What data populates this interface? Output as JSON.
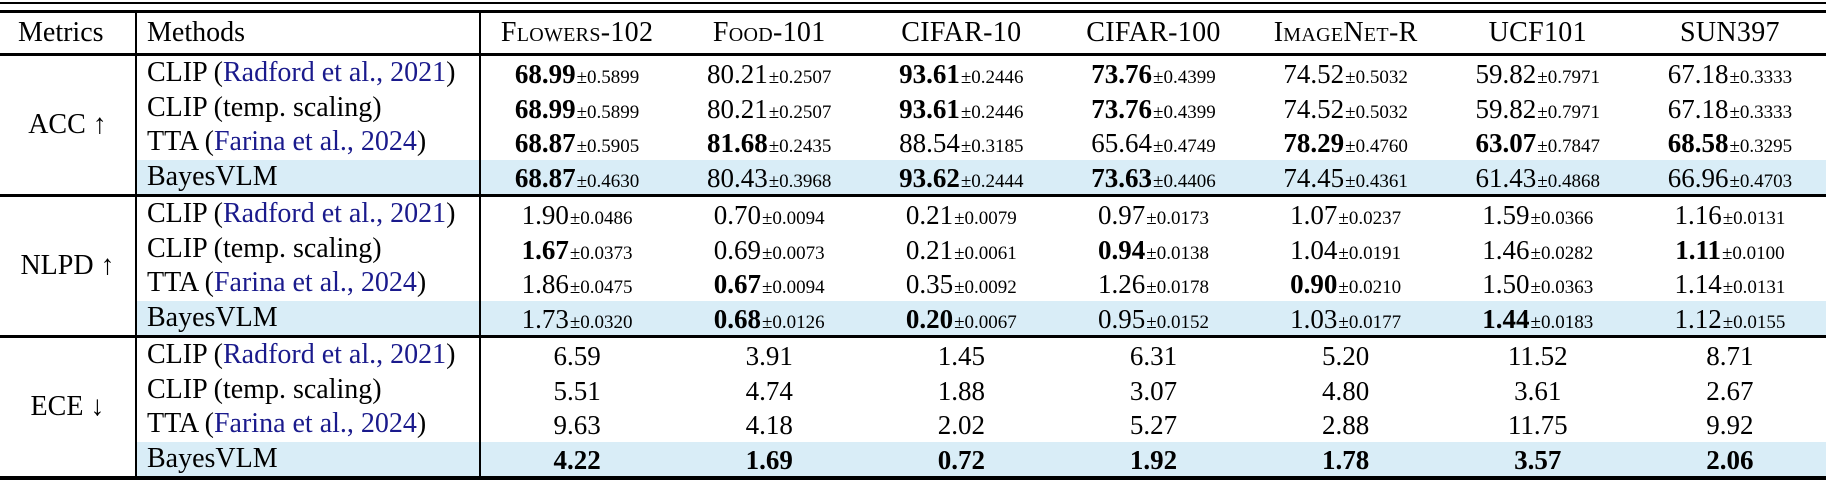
{
  "colors": {
    "highlight": "#d9edf7",
    "citation": "#1a1a8c",
    "rule": "#000000"
  },
  "header": {
    "metrics": "Metrics",
    "methods": "Methods",
    "datasets": [
      "Flowers-102",
      "Food-101",
      "CIFAR-10",
      "CIFAR-100",
      "ImageNet-R",
      "UCF101",
      "SUN397"
    ]
  },
  "sections": [
    {
      "label": "ACC ↑",
      "rows": [
        {
          "method_prefix": "CLIP (",
          "method_cite": "Radford et al., 2021",
          "method_suffix": ")",
          "highlight": false,
          "cells": [
            {
              "v": "68.99",
              "std": "±0.5899",
              "b": true
            },
            {
              "v": "80.21",
              "std": "±0.2507",
              "b": false
            },
            {
              "v": "93.61",
              "std": "±0.2446",
              "b": true
            },
            {
              "v": "73.76",
              "std": "±0.4399",
              "b": true
            },
            {
              "v": "74.52",
              "std": "±0.5032",
              "b": false
            },
            {
              "v": "59.82",
              "std": "±0.7971",
              "b": false
            },
            {
              "v": "67.18",
              "std": "±0.3333",
              "b": false
            }
          ]
        },
        {
          "method_prefix": "CLIP (temp. scaling)",
          "method_cite": "",
          "method_suffix": "",
          "highlight": false,
          "cells": [
            {
              "v": "68.99",
              "std": "±0.5899",
              "b": true
            },
            {
              "v": "80.21",
              "std": "±0.2507",
              "b": false
            },
            {
              "v": "93.61",
              "std": "±0.2446",
              "b": true
            },
            {
              "v": "73.76",
              "std": "±0.4399",
              "b": true
            },
            {
              "v": "74.52",
              "std": "±0.5032",
              "b": false
            },
            {
              "v": "59.82",
              "std": "±0.7971",
              "b": false
            },
            {
              "v": "67.18",
              "std": "±0.3333",
              "b": false
            }
          ]
        },
        {
          "method_prefix": "TTA (",
          "method_cite": "Farina et al., 2024",
          "method_suffix": ")",
          "highlight": false,
          "cells": [
            {
              "v": "68.87",
              "std": "±0.5905",
              "b": true
            },
            {
              "v": "81.68",
              "std": "±0.2435",
              "b": true
            },
            {
              "v": "88.54",
              "std": "±0.3185",
              "b": false
            },
            {
              "v": "65.64",
              "std": "±0.4749",
              "b": false
            },
            {
              "v": "78.29",
              "std": "±0.4760",
              "b": true
            },
            {
              "v": "63.07",
              "std": "±0.7847",
              "b": true
            },
            {
              "v": "68.58",
              "std": "±0.3295",
              "b": true
            }
          ]
        },
        {
          "method_prefix": "BayesVLM",
          "method_cite": "",
          "method_suffix": "",
          "highlight": true,
          "cells": [
            {
              "v": "68.87",
              "std": "±0.4630",
              "b": true
            },
            {
              "v": "80.43",
              "std": "±0.3968",
              "b": false
            },
            {
              "v": "93.62",
              "std": "±0.2444",
              "b": true
            },
            {
              "v": "73.63",
              "std": "±0.4406",
              "b": true
            },
            {
              "v": "74.45",
              "std": "±0.4361",
              "b": false
            },
            {
              "v": "61.43",
              "std": "±0.4868",
              "b": false
            },
            {
              "v": "66.96",
              "std": "±0.4703",
              "b": false
            }
          ]
        }
      ]
    },
    {
      "label": "NLPD ↑",
      "rows": [
        {
          "method_prefix": "CLIP (",
          "method_cite": "Radford et al., 2021",
          "method_suffix": ")",
          "highlight": false,
          "cells": [
            {
              "v": "1.90",
              "std": "±0.0486",
              "b": false
            },
            {
              "v": "0.70",
              "std": "±0.0094",
              "b": false
            },
            {
              "v": "0.21",
              "std": "±0.0079",
              "b": false
            },
            {
              "v": "0.97",
              "std": "±0.0173",
              "b": false
            },
            {
              "v": "1.07",
              "std": "±0.0237",
              "b": false
            },
            {
              "v": "1.59",
              "std": "±0.0366",
              "b": false
            },
            {
              "v": "1.16",
              "std": "±0.0131",
              "b": false
            }
          ]
        },
        {
          "method_prefix": "CLIP (temp. scaling)",
          "method_cite": "",
          "method_suffix": "",
          "highlight": false,
          "cells": [
            {
              "v": "1.67",
              "std": "±0.0373",
              "b": true
            },
            {
              "v": "0.69",
              "std": "±0.0073",
              "b": false
            },
            {
              "v": "0.21",
              "std": "±0.0061",
              "b": false
            },
            {
              "v": "0.94",
              "std": "±0.0138",
              "b": true
            },
            {
              "v": "1.04",
              "std": "±0.0191",
              "b": false
            },
            {
              "v": "1.46",
              "std": "±0.0282",
              "b": false
            },
            {
              "v": "1.11",
              "std": "±0.0100",
              "b": true
            }
          ]
        },
        {
          "method_prefix": "TTA (",
          "method_cite": "Farina et al., 2024",
          "method_suffix": ")",
          "highlight": false,
          "cells": [
            {
              "v": "1.86",
              "std": "±0.0475",
              "b": false
            },
            {
              "v": "0.67",
              "std": "±0.0094",
              "b": true
            },
            {
              "v": "0.35",
              "std": "±0.0092",
              "b": false
            },
            {
              "v": "1.26",
              "std": "±0.0178",
              "b": false
            },
            {
              "v": "0.90",
              "std": "±0.0210",
              "b": true
            },
            {
              "v": "1.50",
              "std": "±0.0363",
              "b": false
            },
            {
              "v": "1.14",
              "std": "±0.0131",
              "b": false
            }
          ]
        },
        {
          "method_prefix": "BayesVLM",
          "method_cite": "",
          "method_suffix": "",
          "highlight": true,
          "cells": [
            {
              "v": "1.73",
              "std": "±0.0320",
              "b": false
            },
            {
              "v": "0.68",
              "std": "±0.0126",
              "b": true
            },
            {
              "v": "0.20",
              "std": "±0.0067",
              "b": true
            },
            {
              "v": "0.95",
              "std": "±0.0152",
              "b": false
            },
            {
              "v": "1.03",
              "std": "±0.0177",
              "b": false
            },
            {
              "v": "1.44",
              "std": "±0.0183",
              "b": true
            },
            {
              "v": "1.12",
              "std": "±0.0155",
              "b": false
            }
          ]
        }
      ]
    },
    {
      "label": "ECE ↓",
      "rows": [
        {
          "method_prefix": "CLIP (",
          "method_cite": "Radford et al., 2021",
          "method_suffix": ")",
          "highlight": false,
          "cells": [
            {
              "v": "6.59",
              "b": false
            },
            {
              "v": "3.91",
              "b": false
            },
            {
              "v": "1.45",
              "b": false
            },
            {
              "v": "6.31",
              "b": false
            },
            {
              "v": "5.20",
              "b": false
            },
            {
              "v": "11.52",
              "b": false
            },
            {
              "v": "8.71",
              "b": false
            }
          ]
        },
        {
          "method_prefix": "CLIP (temp. scaling)",
          "method_cite": "",
          "method_suffix": "",
          "highlight": false,
          "cells": [
            {
              "v": "5.51",
              "b": false
            },
            {
              "v": "4.74",
              "b": false
            },
            {
              "v": "1.88",
              "b": false
            },
            {
              "v": "3.07",
              "b": false
            },
            {
              "v": "4.80",
              "b": false
            },
            {
              "v": "3.61",
              "b": false
            },
            {
              "v": "2.67",
              "b": false
            }
          ]
        },
        {
          "method_prefix": "TTA (",
          "method_cite": "Farina et al., 2024",
          "method_suffix": ")",
          "highlight": false,
          "cells": [
            {
              "v": "9.63",
              "b": false
            },
            {
              "v": "4.18",
              "b": false
            },
            {
              "v": "2.02",
              "b": false
            },
            {
              "v": "5.27",
              "b": false
            },
            {
              "v": "2.88",
              "b": false
            },
            {
              "v": "11.75",
              "b": false
            },
            {
              "v": "9.92",
              "b": false
            }
          ]
        },
        {
          "method_prefix": "BayesVLM",
          "method_cite": "",
          "method_suffix": "",
          "highlight": true,
          "cells": [
            {
              "v": "4.22",
              "b": true
            },
            {
              "v": "1.69",
              "b": true
            },
            {
              "v": "0.72",
              "b": true
            },
            {
              "v": "1.92",
              "b": true
            },
            {
              "v": "1.78",
              "b": true
            },
            {
              "v": "3.57",
              "b": true
            },
            {
              "v": "2.06",
              "b": true
            }
          ]
        }
      ]
    }
  ]
}
